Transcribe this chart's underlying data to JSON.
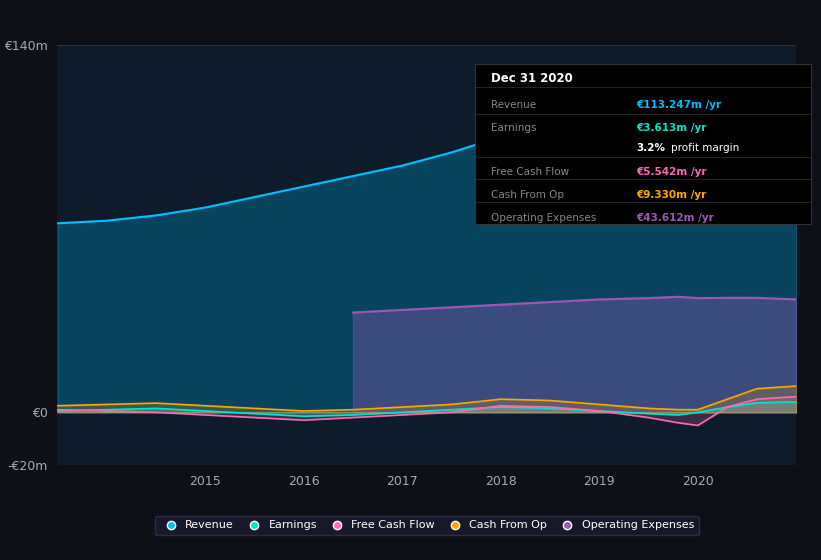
{
  "background_color": "#0d1117",
  "plot_bg_color": "#0d1b2a",
  "ylim": [
    -20,
    140
  ],
  "yticks": [
    -20,
    0,
    140
  ],
  "ytick_labels": [
    "-€20m",
    "€0",
    "€140m"
  ],
  "xticks": [
    2015,
    2016,
    2017,
    2018,
    2019,
    2020
  ],
  "revenue_color": "#00bfff",
  "earnings_color": "#00e5cc",
  "free_cash_flow_color": "#ff69b4",
  "cash_from_op_color": "#ffa500",
  "operating_expenses_color": "#9b59b6",
  "info_box": {
    "title": "Dec 31 2020",
    "rows": [
      {
        "label": "Revenue",
        "value": "€113.247m /yr",
        "value_color": "#00bfff"
      },
      {
        "label": "Earnings",
        "value": "€3.613m /yr",
        "value_color": "#00e5cc"
      },
      {
        "label": "",
        "value": "3.2% profit margin",
        "value_color": "#ffffff"
      },
      {
        "label": "Free Cash Flow",
        "value": "€5.542m /yr",
        "value_color": "#ff69b4"
      },
      {
        "label": "Cash From Op",
        "value": "€9.330m /yr",
        "value_color": "#ffa500"
      },
      {
        "label": "Operating Expenses",
        "value": "€43.612m /yr",
        "value_color": "#9b59b6"
      }
    ]
  },
  "legend": [
    {
      "label": "Revenue",
      "color": "#00bfff"
    },
    {
      "label": "Earnings",
      "color": "#00e5cc"
    },
    {
      "label": "Free Cash Flow",
      "color": "#ff69b4"
    },
    {
      "label": "Cash From Op",
      "color": "#ffa500"
    },
    {
      "label": "Operating Expenses",
      "color": "#9b59b6"
    }
  ]
}
